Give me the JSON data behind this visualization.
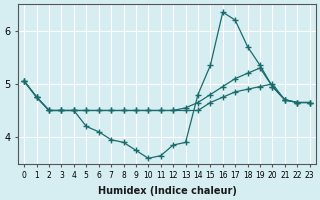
{
  "title": "",
  "xlabel": "Humidex (Indice chaleur)",
  "ylabel": "",
  "bg_color": "#d6eef2",
  "grid_color": "#ffffff",
  "line_color": "#1a6b6b",
  "x_ticks": [
    0,
    1,
    2,
    3,
    4,
    5,
    6,
    7,
    8,
    9,
    10,
    11,
    12,
    13,
    14,
    15,
    16,
    17,
    18,
    19,
    20,
    21,
    22,
    23
  ],
  "ylim": [
    3.5,
    6.5
  ],
  "yticks": [
    4,
    5,
    6
  ],
  "series": [
    [
      5.05,
      4.75,
      4.5,
      4.5,
      4.5,
      4.2,
      4.1,
      3.95,
      3.9,
      3.75,
      3.6,
      3.65,
      3.85,
      3.9,
      4.8,
      5.35,
      6.35,
      6.2,
      5.7,
      5.35,
      4.95,
      4.7,
      4.65,
      4.65
    ],
    [
      5.05,
      4.75,
      4.5,
      4.5,
      4.5,
      4.5,
      4.5,
      4.5,
      4.5,
      4.5,
      4.5,
      4.5,
      4.5,
      4.5,
      4.5,
      4.65,
      4.75,
      4.85,
      4.9,
      4.95,
      5.0,
      4.7,
      4.65,
      4.65
    ],
    [
      5.05,
      4.75,
      4.5,
      4.5,
      4.5,
      4.5,
      4.5,
      4.5,
      4.5,
      4.5,
      4.5,
      4.5,
      4.5,
      4.55,
      4.65,
      4.8,
      4.95,
      5.1,
      5.2,
      5.3,
      4.95,
      4.7,
      4.65,
      4.65
    ]
  ]
}
